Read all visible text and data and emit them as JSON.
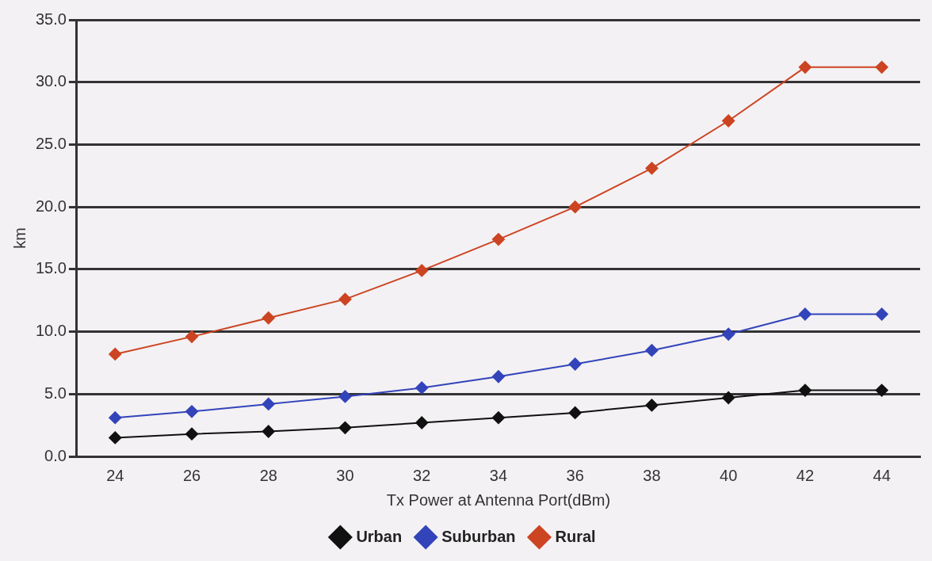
{
  "chart_data": {
    "type": "line",
    "xlabel": "Tx Power at Antenna Port(dBm)",
    "ylabel": "km",
    "categories": [
      "24",
      "26",
      "28",
      "30",
      "32",
      "34",
      "36",
      "38",
      "40",
      "42",
      "44"
    ],
    "series": [
      {
        "name": "Urban",
        "color": "#111111",
        "values": [
          1.5,
          1.8,
          2.0,
          2.3,
          2.7,
          3.1,
          3.5,
          4.1,
          4.7,
          5.3,
          5.3
        ]
      },
      {
        "name": "Suburban",
        "color": "#3344bb",
        "values": [
          3.1,
          3.6,
          4.2,
          4.8,
          5.5,
          6.4,
          7.4,
          8.5,
          9.8,
          11.4,
          11.4
        ]
      },
      {
        "name": "Rural",
        "color": "#cc4422",
        "values": [
          8.2,
          9.6,
          11.1,
          12.6,
          14.9,
          17.4,
          20.0,
          23.1,
          26.9,
          31.2,
          31.2
        ]
      }
    ],
    "ylim": [
      0,
      35
    ],
    "yticks": [
      {
        "value": 0,
        "label": "0.0"
      },
      {
        "value": 5,
        "label": "5.0"
      },
      {
        "value": 10,
        "label": "10.0"
      },
      {
        "value": 15,
        "label": "15.0"
      },
      {
        "value": 20,
        "label": "20.0"
      },
      {
        "value": 25,
        "label": "25.0"
      },
      {
        "value": 30,
        "label": "30.0"
      },
      {
        "value": 35,
        "label": "35.0"
      }
    ],
    "grid": "y",
    "legend": "bottom",
    "marker": "diamond",
    "line_style": "solid"
  }
}
